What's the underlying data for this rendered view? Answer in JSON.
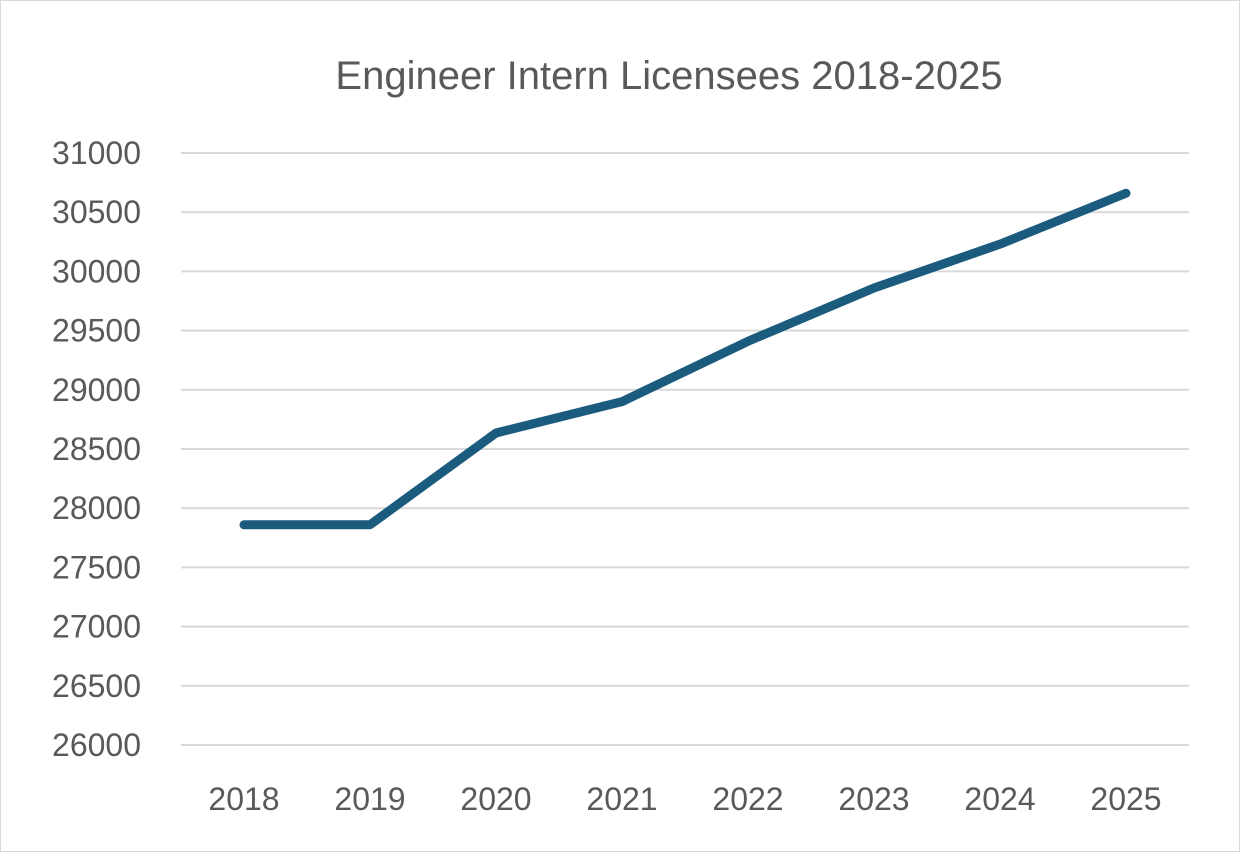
{
  "chart_data": {
    "type": "line",
    "title": "Engineer Intern Licensees 2018-2025",
    "xlabel": "",
    "ylabel": "",
    "categories": [
      "2018",
      "2019",
      "2020",
      "2021",
      "2022",
      "2023",
      "2024",
      "2025"
    ],
    "series": [
      {
        "values": [
          27860,
          27860,
          28635,
          28900,
          29410,
          29860,
          30230,
          30660
        ],
        "color": "#1a5b7e"
      }
    ],
    "ylim": [
      26000,
      31000
    ],
    "yticks": [
      26000,
      26500,
      27000,
      27500,
      28000,
      28500,
      29000,
      29500,
      30000,
      30500,
      31000
    ],
    "grid": true,
    "gridColor": "#d9d9d9",
    "legend": "none"
  }
}
